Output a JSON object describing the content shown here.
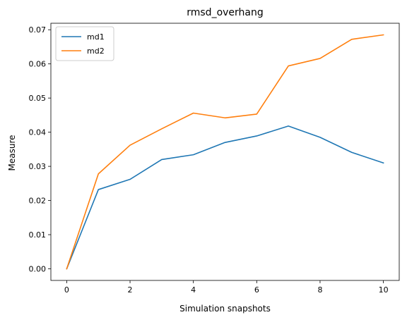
{
  "chart_data": {
    "type": "line",
    "title": "rmsd_overhang",
    "xlabel": "Simulation snapshots",
    "ylabel": "Measure",
    "x": [
      0,
      1,
      2,
      3,
      4,
      5,
      6,
      7,
      8,
      9,
      10
    ],
    "xlim": [
      -0.5,
      10.5
    ],
    "ylim": [
      -0.0034,
      0.0719
    ],
    "xticks": [
      0,
      2,
      4,
      6,
      8,
      10
    ],
    "yticks": [
      0.0,
      0.01,
      0.02,
      0.03,
      0.04,
      0.05,
      0.06,
      0.07
    ],
    "ytick_labels": [
      "0.00",
      "0.01",
      "0.02",
      "0.03",
      "0.04",
      "0.05",
      "0.06",
      "0.07"
    ],
    "grid": false,
    "legend_position": "top-left",
    "series": [
      {
        "name": "md1",
        "color": "#1f77b4",
        "values": [
          0.0,
          0.0232,
          0.0262,
          0.032,
          0.0334,
          0.037,
          0.0389,
          0.0418,
          0.0385,
          0.0341,
          0.031
        ]
      },
      {
        "name": "md2",
        "color": "#ff7f0e",
        "values": [
          0.0,
          0.0278,
          0.0362,
          0.041,
          0.0456,
          0.0442,
          0.0453,
          0.0594,
          0.0616,
          0.0672,
          0.0685
        ]
      }
    ]
  }
}
